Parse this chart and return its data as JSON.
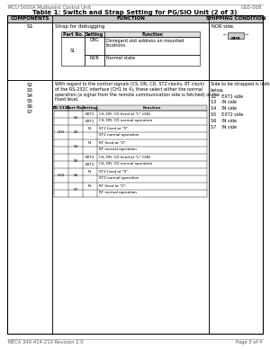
{
  "header_left": "MCU 5000A Multipoint Control Unit",
  "header_right": "GSD-008",
  "footer_left": "NECA 340-414-210 Revision 2.0",
  "footer_right": "Page 3 of 4",
  "title": "Table 1: Switch and Strap Setting for PG/SIO Unit (2 of 3)",
  "col_headers": [
    "COMPONENTS",
    "FUNCTION",
    "SHIPPING CONDITION"
  ],
  "bg_color": "#ffffff",
  "s1_desc": "Strap for debugging",
  "s1_subtable_headers": [
    "Part No.",
    "Setting",
    "Function"
  ],
  "s1_rows": [
    [
      "S1",
      "DBG",
      "Disregard slot address on mounted\nlocations."
    ],
    [
      "",
      "NOR",
      "Normal state"
    ]
  ],
  "s1_shipping": "NOR side.",
  "s2s7_desc": "With regard to the control signals (CS, DR, CD, ST2 clocks, RT clock)\nof the RS-232C interface (CH1 to 4), these select either the normal\noperation (a signal from the remote communication side is fetched) or the\nfixed level.",
  "s2s7_labels": [
    "S2",
    "S3",
    "S4",
    "S5",
    "S6",
    "S7"
  ],
  "s2s7_shipping": [
    "Side to be strapped is indicated",
    "below.",
    "S2    EXT1 side",
    "S3    IN side",
    "S4    IN side",
    "S5    EXT2 side",
    "S6    IN side",
    "S7    IN side"
  ],
  "inner_headers": [
    "RS-232C",
    "Part No.",
    "Setting",
    "Function"
  ],
  "ch1_rows": [
    [
      "EXT1",
      "CS, DR, CD fixed at \"L\" (GN)"
    ],
    [
      "EXT1",
      "CS, DR, CD normal operation"
    ],
    [
      "IN",
      "ST2 fixed at \"0\"."
    ],
    [
      ".",
      "ST2 normal operation"
    ],
    [
      "IN",
      "RT fixed at \"0\"."
    ],
    [
      ".",
      "RT normal operation"
    ]
  ],
  "ch2_rows": [
    [
      "EXT2",
      "CS, DR, CD fixed at \"L\" (GN)"
    ],
    [
      "EXT2",
      "CS, DR, CD normal operation"
    ],
    [
      "IN",
      "ST2 fixed at \"0\"."
    ],
    [
      ".",
      "ST2 normal operation"
    ],
    [
      "IN",
      "RT fixed at \"0\"."
    ],
    [
      ".",
      "RT normal operation"
    ]
  ]
}
